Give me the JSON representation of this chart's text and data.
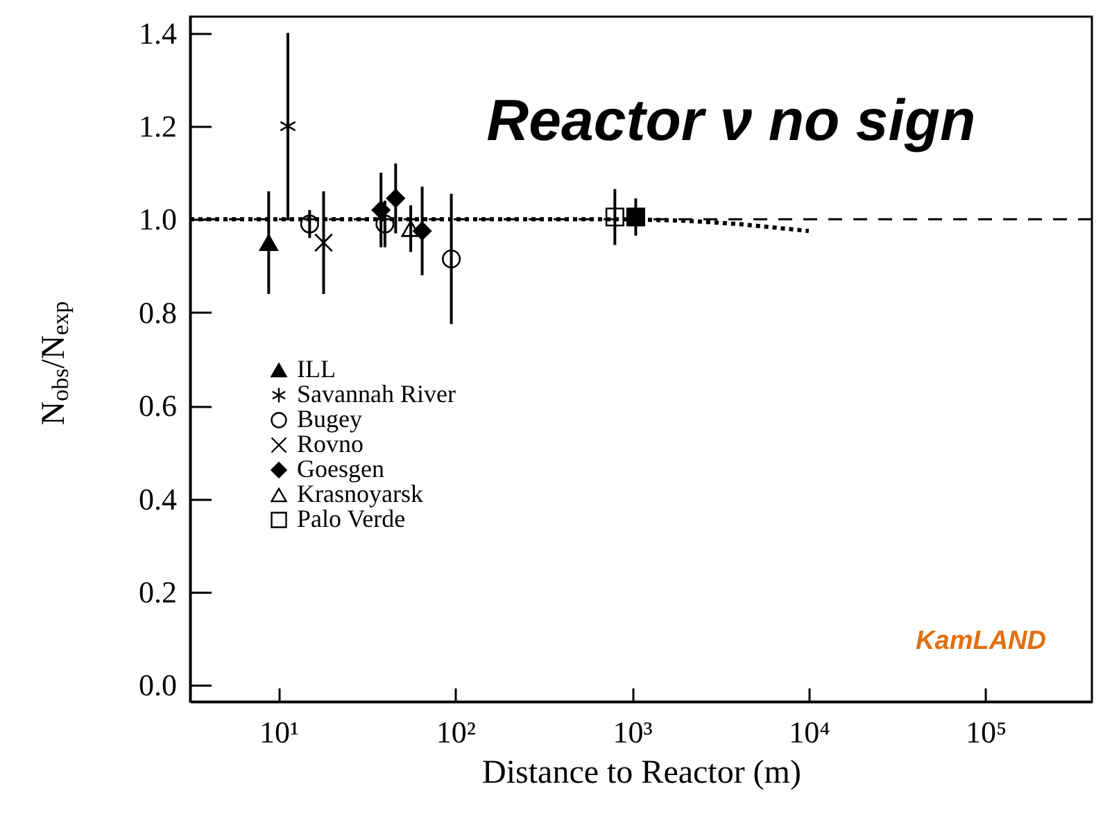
{
  "chart_data": {
    "type": "scatter",
    "title": "Reactor ν no sign",
    "xlabel": "Distance to Reactor (m)",
    "ylabel": "N$_{obs}$/N$_{exp}$",
    "log": "x",
    "xlim": [
      3.16,
      400000
    ],
    "ylim": [
      -0.035,
      1.435
    ],
    "xticks": [
      {
        "value": 10,
        "label": "10¹"
      },
      {
        "value": 100,
        "label": "10²"
      },
      {
        "value": 1000,
        "label": "10³"
      },
      {
        "value": 10000,
        "label": "10⁴"
      },
      {
        "value": 100000,
        "label": "10⁵"
      }
    ],
    "yticks": [
      {
        "value": 0,
        "label": "0.0"
      },
      0.2,
      0.4,
      0.6,
      0.8,
      {
        "value": 1,
        "label": "1.0"
      },
      1.2,
      1.4
    ],
    "grid": false,
    "legend": "left",
    "series": [
      {
        "name": "ILL",
        "color": "#000000",
        "marker": "triangle",
        "x": [
          8.8
        ],
        "values": [
          0.95
        ],
        "errors": [
          0.11
        ]
      },
      {
        "name": "Savannah River",
        "color": "#000000",
        "x": [
          11.3
        ],
        "values": [
          1.2
        ],
        "errors": [
          0.2
        ]
      },
      {
        "name": "Bugey",
        "color": "#000000",
        "marker": "circle-open",
        "x": [
          15,
          40,
          95
        ],
        "values": [
          0.99,
          0.99,
          0.915
        ],
        "errors": [
          0.03,
          0.05,
          0.14
        ]
      },
      {
        "name": "Rovno",
        "color": "#000000",
        "marker": "cross",
        "x": [
          18
        ],
        "values": [
          0.95
        ],
        "errors": [
          0.11
        ]
      },
      {
        "name": "Goesgen",
        "color": "#000000",
        "marker": "diamond",
        "x": [
          38,
          46,
          65
        ],
        "values": [
          1.02,
          1.045,
          0.975
        ],
        "errors": [
          0.08,
          0.075,
          0.095
        ]
      },
      {
        "name": "Krasnoyarsk",
        "color": "#000000",
        "marker": "triangle-open",
        "x": [
          56
        ],
        "values": [
          0.98
        ],
        "errors": [
          0.05
        ]
      },
      {
        "name": "Palo Verde",
        "color": "#000000",
        "marker": "square-open",
        "x": [
          800
        ],
        "values": [
          1.005
        ],
        "errors": [
          0.06
        ]
      },
      {
        "color": "#000000",
        "marker": "square",
        "x": [
          1050
        ],
        "values": [
          1.005
        ],
        "errors": [
          0.04
        ]
      },
      {
        "type": "line",
        "color": "#000000",
        "line_style": "dotted",
        "marker": "none",
        "x": [
          3.16,
          1000,
          2000,
          4000,
          10000
        ],
        "values": [
          1,
          1,
          0.997,
          0.99,
          0.975
        ]
      }
    ],
    "ref_lines": [
      {
        "axis": "y",
        "value": 1,
        "color": "#000000",
        "line_style": "dashed"
      }
    ],
    "annotations": [
      "KamLAND"
    ]
  }
}
